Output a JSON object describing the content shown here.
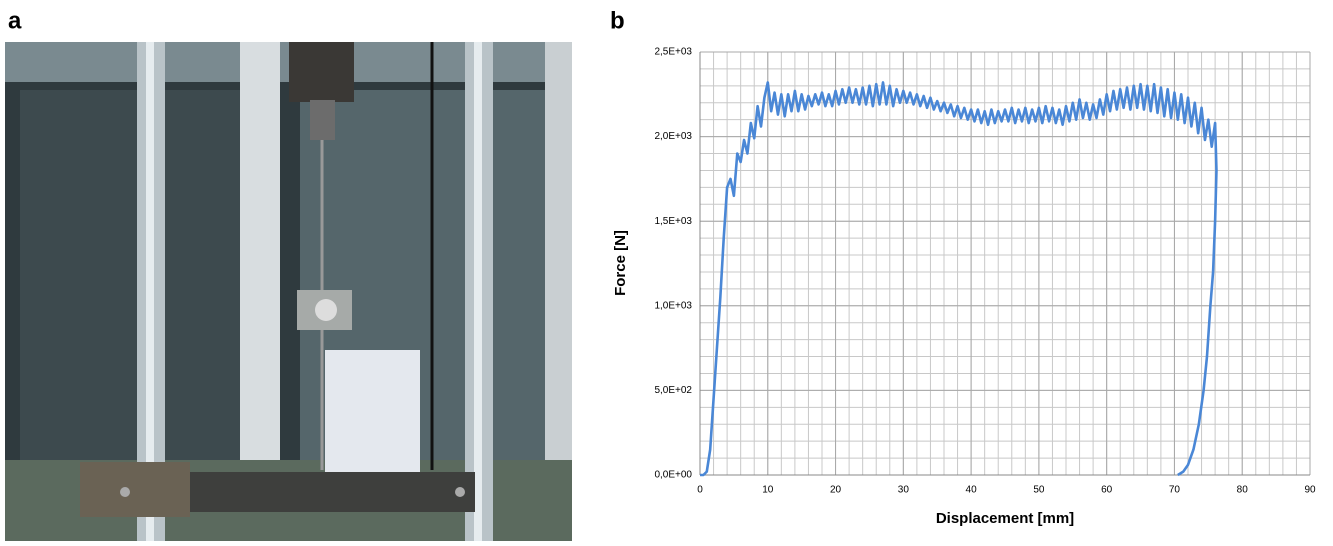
{
  "panel_labels": [
    "a",
    "b"
  ],
  "chart_data": {
    "type": "line",
    "xlabel": "Displacement [mm]",
    "ylabel": "Force [N]",
    "xlim": [
      0,
      90
    ],
    "xticks": [
      0,
      10,
      20,
      30,
      40,
      50,
      60,
      70,
      80,
      90
    ],
    "ylim": [
      0,
      2500
    ],
    "yticks": [
      {
        "value": 0,
        "label": "0,0E+00"
      },
      {
        "value": 500,
        "label": "5,0E+02"
      },
      {
        "value": 1000,
        "label": "1,0E+03"
      },
      {
        "value": 1500,
        "label": "1,5E+03"
      },
      {
        "value": 2000,
        "label": "2,0E+03"
      },
      {
        "value": 2500,
        "label": "2,5E+03"
      }
    ],
    "grid": true,
    "minor_grid_step": {
      "x": 2,
      "y": 100
    },
    "series": [
      {
        "color": "#4a87d6",
        "x": [
          0,
          0.5,
          1,
          1.5,
          2,
          2.5,
          3,
          3.5,
          4,
          4.5,
          5,
          5.5,
          6,
          6.5,
          7,
          7.5,
          8,
          8.5,
          9,
          9.5,
          10,
          10.5,
          11,
          11.5,
          12,
          12.5,
          13,
          13.5,
          14,
          14.5,
          15,
          15.5,
          16,
          16.5,
          17,
          17.5,
          18,
          18.5,
          19,
          19.5,
          20,
          20.5,
          21,
          21.5,
          22,
          22.5,
          23,
          23.5,
          24,
          24.5,
          25,
          25.5,
          26,
          26.5,
          27,
          27.5,
          28,
          28.5,
          29,
          29.5,
          30,
          30.5,
          31,
          31.5,
          32,
          32.5,
          33,
          33.5,
          34,
          34.5,
          35,
          35.5,
          36,
          36.5,
          37,
          37.5,
          38,
          38.5,
          39,
          39.5,
          40,
          40.5,
          41,
          41.5,
          42,
          42.5,
          43,
          43.5,
          44,
          44.5,
          45,
          45.5,
          46,
          46.5,
          47,
          47.5,
          48,
          48.5,
          49,
          49.5,
          50,
          50.5,
          51,
          51.5,
          52,
          52.5,
          53,
          53.5,
          54,
          54.5,
          55,
          55.5,
          56,
          56.5,
          57,
          57.5,
          58,
          58.5,
          59,
          59.5,
          60,
          60.5,
          61,
          61.5,
          62,
          62.5,
          63,
          63.5,
          64,
          64.5,
          65,
          65.5,
          66,
          66.5,
          67,
          67.5,
          68,
          68.5,
          69,
          69.5,
          70,
          70.5,
          71,
          71.5,
          72,
          72.5,
          73,
          73.5,
          74,
          74.5,
          75,
          75.5,
          76,
          76.2,
          76,
          75.7,
          75.3,
          74.8,
          74.3,
          73.6,
          72.8,
          72,
          71.3,
          70.5
        ],
        "values": [
          0,
          0,
          20,
          150,
          450,
          750,
          1050,
          1400,
          1700,
          1750,
          1650,
          1900,
          1850,
          1980,
          1900,
          2080,
          1990,
          2180,
          2060,
          2230,
          2320,
          2150,
          2260,
          2130,
          2250,
          2120,
          2250,
          2150,
          2270,
          2150,
          2250,
          2160,
          2240,
          2180,
          2250,
          2190,
          2260,
          2180,
          2250,
          2180,
          2270,
          2190,
          2280,
          2200,
          2290,
          2200,
          2280,
          2190,
          2290,
          2190,
          2300,
          2180,
          2310,
          2190,
          2320,
          2190,
          2300,
          2180,
          2280,
          2200,
          2270,
          2200,
          2260,
          2190,
          2250,
          2180,
          2240,
          2170,
          2230,
          2160,
          2210,
          2150,
          2200,
          2140,
          2190,
          2120,
          2180,
          2110,
          2170,
          2100,
          2160,
          2090,
          2160,
          2080,
          2150,
          2070,
          2160,
          2080,
          2150,
          2090,
          2160,
          2090,
          2170,
          2080,
          2160,
          2090,
          2170,
          2080,
          2160,
          2090,
          2170,
          2080,
          2180,
          2090,
          2170,
          2080,
          2160,
          2070,
          2180,
          2090,
          2200,
          2100,
          2220,
          2110,
          2200,
          2100,
          2190,
          2110,
          2220,
          2130,
          2250,
          2150,
          2270,
          2160,
          2280,
          2170,
          2290,
          2160,
          2300,
          2170,
          2310,
          2160,
          2300,
          2150,
          2310,
          2140,
          2290,
          2120,
          2280,
          2110,
          2260,
          2100,
          2250,
          2080,
          2230,
          2060,
          2200,
          2020,
          2170,
          1980,
          2100,
          1940,
          2080,
          1800,
          1500,
          1200,
          1000,
          700,
          500,
          300,
          150,
          60,
          20,
          0
        ]
      }
    ]
  }
}
